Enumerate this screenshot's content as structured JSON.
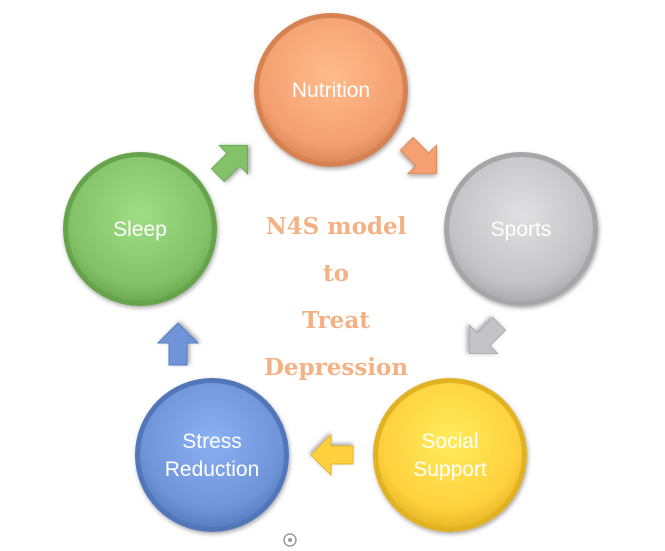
{
  "diagram": {
    "title_lines": [
      "N4S model",
      "to",
      "Treat",
      "Depression"
    ],
    "nodes": [
      {
        "id": "nutrition",
        "lines": [
          "Nutrition"
        ],
        "color": "#f4a070"
      },
      {
        "id": "sports",
        "lines": [
          "Sports"
        ],
        "color": "#c4c4c6"
      },
      {
        "id": "social-support",
        "lines": [
          "Social",
          "Support"
        ],
        "color": "#ffd03e"
      },
      {
        "id": "stress-reduction",
        "lines": [
          "Stress",
          "Reduction"
        ],
        "color": "#6f94d8"
      },
      {
        "id": "sleep",
        "lines": [
          "Sleep"
        ],
        "color": "#84c26a"
      }
    ],
    "arrows": [
      {
        "from": "nutrition",
        "to": "sports",
        "color": "#f4a070"
      },
      {
        "from": "sports",
        "to": "social-support",
        "color": "#c4c4c6"
      },
      {
        "from": "social-support",
        "to": "stress-reduction",
        "color": "#ffd03e"
      },
      {
        "from": "stress-reduction",
        "to": "sleep",
        "color": "#6f94d8"
      },
      {
        "from": "sleep",
        "to": "nutrition",
        "color": "#84c26a"
      }
    ]
  }
}
